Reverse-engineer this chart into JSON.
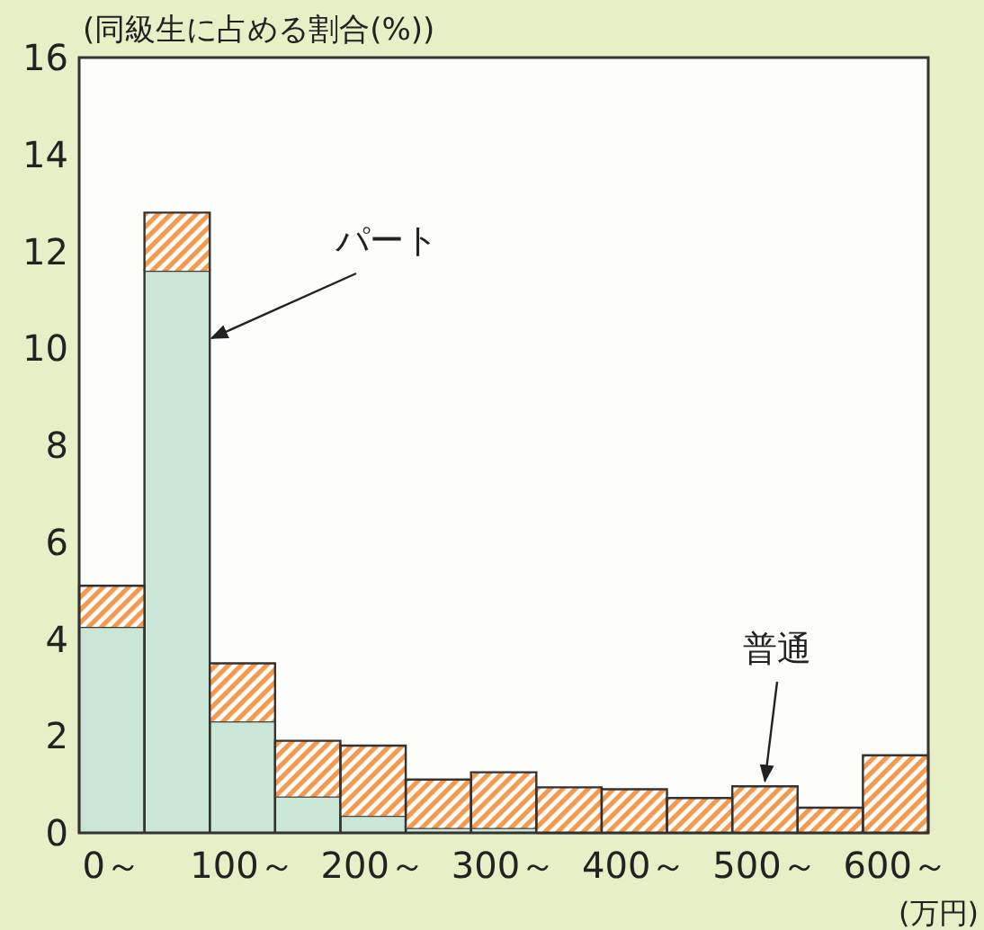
{
  "chart_data": {
    "type": "bar",
    "stacked": true,
    "ylabel": "(同級生に占める割合(%))",
    "xlabel": "(万円)",
    "categories": [
      "0～",
      null,
      "100～",
      null,
      "200～",
      null,
      "300～",
      null,
      "400～",
      null,
      "500～",
      null,
      "600～"
    ],
    "series": [
      {
        "name": "パート",
        "color": "#c9e6d6",
        "values": [
          4.25,
          11.6,
          2.3,
          0.75,
          0.35,
          0.1,
          0.1,
          0,
          0,
          0,
          0,
          0,
          0
        ]
      },
      {
        "name": "普通",
        "color": "#f39a4e",
        "values": [
          0.85,
          1.2,
          1.2,
          1.15,
          1.45,
          1.0,
          1.15,
          0.94,
          0.9,
          0.72,
          0.96,
          0.52,
          1.6
        ]
      }
    ],
    "ylim": [
      0,
      16
    ],
    "yticks": [
      0,
      2,
      4,
      6,
      8,
      10,
      12,
      14,
      16
    ],
    "grid": false
  }
}
